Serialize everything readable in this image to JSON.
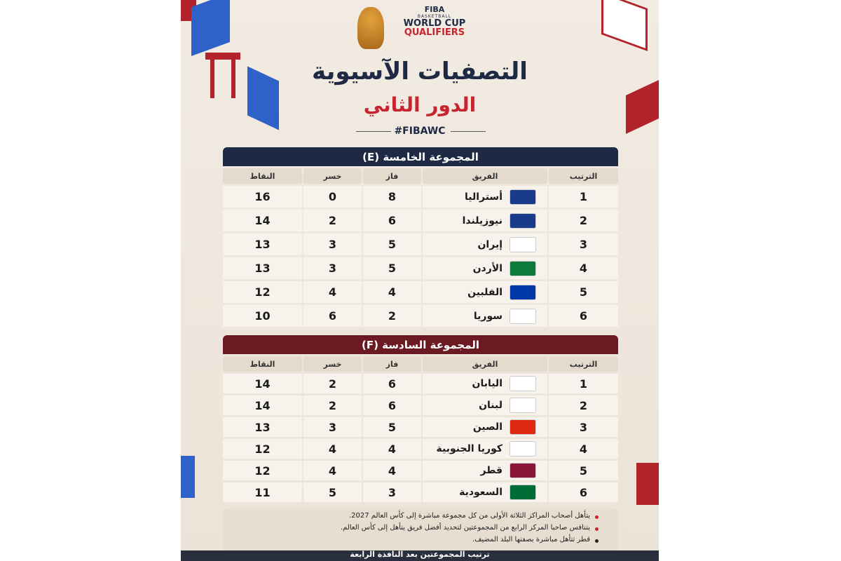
{
  "header": {
    "logo": {
      "brand": "FIBA",
      "line1": "BASKETBALL",
      "line2": "WORLD CUP",
      "line3": "QUALIFIERS"
    },
    "title": "التصفيات الآسيوية",
    "subtitle": "الدور الثاني",
    "hashtag": "#FIBAWC"
  },
  "tables": [
    {
      "title": "المجموعة الخامسة (E)",
      "columns": [
        "الترتيب",
        "الفريق",
        "فاز",
        "خسر",
        "النقاط"
      ],
      "rows": [
        [
          1,
          "أستراليا",
          8,
          0,
          16
        ],
        [
          2,
          "نيوزيلندا",
          6,
          2,
          14
        ],
        [
          3,
          "إيران",
          5,
          3,
          13
        ],
        [
          4,
          "الأردن",
          5,
          3,
          13
        ],
        [
          5,
          "الفلبين",
          4,
          4,
          12
        ],
        [
          6,
          "سوريا",
          2,
          6,
          10
        ]
      ]
    },
    {
      "title": "المجموعة السادسة (F)",
      "columns": [
        "الترتيب",
        "الفريق",
        "فاز",
        "خسر",
        "النقاط"
      ],
      "rows": [
        [
          1,
          "اليابان",
          6,
          2,
          14
        ],
        [
          2,
          "لبنان",
          6,
          2,
          14
        ],
        [
          3,
          "الصين",
          5,
          3,
          13
        ],
        [
          4,
          "كوريا الجنوبية",
          4,
          4,
          12
        ],
        [
          5,
          "قطر",
          4,
          4,
          12
        ],
        [
          6,
          "السعودية",
          3,
          5,
          11
        ]
      ]
    }
  ],
  "notes": [
    "يتأهل أصحاب المراكز الثلاثة الأولى من كل مجموعة مباشرة إلى كأس العالم 2027.",
    "يتنافس صاحبا المركز الرابع من المجموعتين لتحديد أفضل فريق يتأهل إلى كأس العالم.",
    "قطر تتأهل مباشرة بصفتها البلد المضيف."
  ],
  "footer": "ترتيب المجموعتين بعد النافذة الرابعة"
}
